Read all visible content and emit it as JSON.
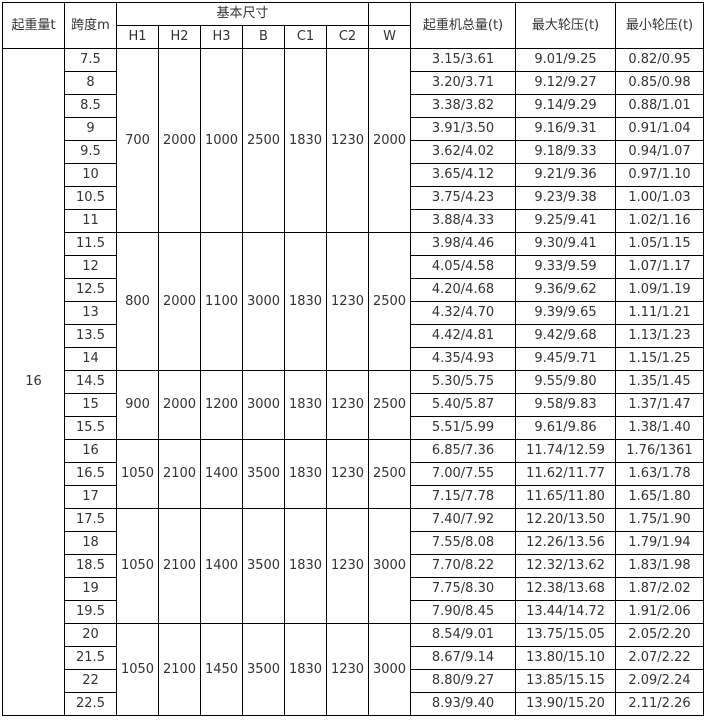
{
  "headers": {
    "capacity": "起重量t",
    "span": "跨度m",
    "basic_dims": "基本尺寸",
    "dims": [
      "H1",
      "H2",
      "H3",
      "B",
      "C1",
      "C2",
      "W"
    ],
    "total_weight": "起重机总量(t)",
    "max_wheel": "最大轮压(t)",
    "min_wheel": "最小轮压(t)"
  },
  "capacity": "16",
  "groups": [
    {
      "dims": [
        "700",
        "2000",
        "1000",
        "2500",
        "1830",
        "1230",
        "2000"
      ],
      "rows": [
        [
          "7.5",
          "3.15/3.61",
          "9.01/9.25",
          "0.82/0.95"
        ],
        [
          "8",
          "3.20/3.71",
          "9.12/9.27",
          "0.85/0.98"
        ],
        [
          "8.5",
          "3.38/3.82",
          "9.14/9.29",
          "0.88/1.01"
        ],
        [
          "9",
          "3.91/3.50",
          "9.16/9.31",
          "0.91/1.04"
        ],
        [
          "9.5",
          "3.62/4.02",
          "9.18/9.33",
          "0.94/1.07"
        ],
        [
          "10",
          "3.65/4.12",
          "9.21/9.36",
          "0.97/1.10"
        ],
        [
          "10.5",
          "3.75/4.23",
          "9.23/9.38",
          "1.00/1.03"
        ],
        [
          "11",
          "3.88/4.33",
          "9.25/9.41",
          "1.02/1.16"
        ]
      ]
    },
    {
      "dims": [
        "800",
        "2000",
        "1100",
        "3000",
        "1830",
        "1230",
        "2500"
      ],
      "rows": [
        [
          "11.5",
          "3.98/4.46",
          "9.30/9.41",
          "1.05/1.15"
        ],
        [
          "12",
          "4.05/4.58",
          "9.33/9.59",
          "1.07/1.17"
        ],
        [
          "12.5",
          "4.20/4.68",
          "9.36/9.62",
          "1.09/1.19"
        ],
        [
          "13",
          "4.32/4.70",
          "9.39/9.65",
          "1.11/1.21"
        ],
        [
          "13.5",
          "4.42/4.81",
          "9.42/9.68",
          "1.13/1.23"
        ],
        [
          "14",
          "4.35/4.93",
          "9.45/9.71",
          "1.15/1.25"
        ]
      ]
    },
    {
      "dims": [
        "900",
        "2000",
        "1200",
        "3000",
        "1830",
        "1230",
        "2500"
      ],
      "rows": [
        [
          "14.5",
          "5.30/5.75",
          "9.55/9.80",
          "1.35/1.45"
        ],
        [
          "15",
          "5.40/5.87",
          "9.58/9.83",
          "1.37/1.47"
        ],
        [
          "15.5",
          "5.51/5.99",
          "9.61/9.86",
          "1.38/1.40"
        ]
      ]
    },
    {
      "dims": [
        "1050",
        "2100",
        "1400",
        "3500",
        "1830",
        "1230",
        "2500"
      ],
      "rows": [
        [
          "16",
          "6.85/7.36",
          "11.74/12.59",
          "1.76/1361"
        ],
        [
          "16.5",
          "7.00/7.55",
          "11.62/11.77",
          "1.63/1.78"
        ],
        [
          "17",
          "7.15/7.78",
          "11.65/11.80",
          "1.65/1.80"
        ]
      ]
    },
    {
      "dims": [
        "1050",
        "2100",
        "1400",
        "3500",
        "1830",
        "1230",
        "3000"
      ],
      "rows": [
        [
          "17.5",
          "7.40/7.92",
          "12.20/13.50",
          "1.75/1.90"
        ],
        [
          "18",
          "7.55/8.08",
          "12.26/13.56",
          "1.79/1.94"
        ],
        [
          "18.5",
          "7.70/8.22",
          "12.32/13.62",
          "1.83/1.98"
        ],
        [
          "19",
          "7.75/8.30",
          "12.38/13.68",
          "1.87/2.02"
        ],
        [
          "19.5",
          "7.90/8.45",
          "13.44/14.72",
          "1.91/2.06"
        ]
      ]
    },
    {
      "dims": [
        "1050",
        "2100",
        "1450",
        "3500",
        "1830",
        "1230",
        "3000"
      ],
      "rows": [
        [
          "20",
          "8.54/9.01",
          "13.75/15.05",
          "2.05/2.20"
        ],
        [
          "21.5",
          "8.67/9.14",
          "13.80/15.10",
          "2.07/2.22"
        ],
        [
          "22",
          "8.80/9.27",
          "13.85/15.15",
          "2.09/2.24"
        ],
        [
          "22.5",
          "8.93/9.40",
          "13.90/15.20",
          "2.11/2.26"
        ]
      ]
    }
  ]
}
